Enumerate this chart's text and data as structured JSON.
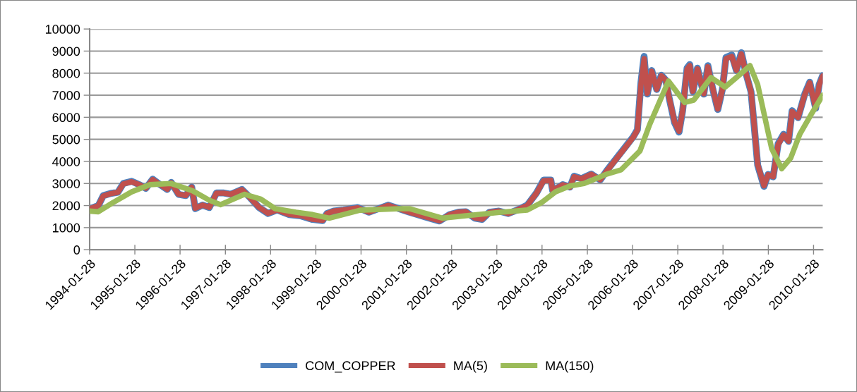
{
  "chart_data": {
    "type": "line",
    "ylim": [
      0,
      10000
    ],
    "yticks": [
      0,
      1000,
      2000,
      3000,
      4000,
      5000,
      6000,
      7000,
      8000,
      9000,
      10000
    ],
    "xlim": [
      "1994-01-28",
      "2010-04-12"
    ],
    "xticks": [
      "1994-01-28",
      "1995-01-28",
      "1996-01-28",
      "1997-01-28",
      "1998-01-28",
      "1999-01-28",
      "2000-01-28",
      "2001-01-28",
      "2002-01-28",
      "2003-01-28",
      "2004-01-28",
      "2005-01-28",
      "2006-01-28",
      "2007-01-28",
      "2008-01-28",
      "2009-01-28",
      "2010-01-28"
    ],
    "grid": "y",
    "legend": "bottom",
    "marker": "none",
    "line_style": "solid",
    "series": [
      {
        "name": "COM_COPPER",
        "color": "#4f81bd",
        "x": [
          "1994-01-28",
          "1994-04-08",
          "1994-05-18",
          "1994-07-16",
          "1994-09-13",
          "1994-10-27",
          "1995-01-02",
          "1995-03-04",
          "1995-04-27",
          "1995-06-21",
          "1995-08-19",
          "1995-10-16",
          "1995-11-18",
          "1996-01-15",
          "1996-03-14",
          "1996-05-01",
          "1996-05-30",
          "1996-07-27",
          "1996-09-20",
          "1996-11-17",
          "1997-01-15",
          "1997-03-11",
          "1997-06-10",
          "1997-08-08",
          "1997-10-27",
          "1998-01-08",
          "1998-03-21",
          "1998-06-28",
          "1998-10-01",
          "1999-01-02",
          "1999-03-24",
          "1999-04-28",
          "1999-06-22",
          "1999-09-09",
          "2000-01-02",
          "2000-04-01",
          "2000-09-02",
          "2000-11-01",
          "2001-02-21",
          "2001-07-02",
          "2001-10-23",
          "2002-01-12",
          "2002-03-25",
          "2002-05-23",
          "2002-08-04",
          "2002-10-01",
          "2002-11-29",
          "2003-02-14",
          "2003-05-01",
          "2003-07-13",
          "2003-10-01",
          "2003-12-13",
          "2004-02-10",
          "2004-04-08",
          "2004-04-23",
          "2004-07-13",
          "2004-09-10",
          "2004-10-13",
          "2004-12-10",
          "2005-02-28",
          "2005-05-12",
          "2005-07-06",
          "2005-09-21",
          "2005-12-06",
          "2006-02-03",
          "2006-03-08",
          "2006-04-06",
          "2006-05-01",
          "2006-05-27",
          "2006-07-02",
          "2006-08-11",
          "2006-09-17",
          "2006-10-23",
          "2006-11-21",
          "2007-01-02",
          "2007-02-07",
          "2007-03-08",
          "2007-04-13",
          "2007-05-05",
          "2007-05-30",
          "2007-07-06",
          "2007-08-26",
          "2007-09-28",
          "2007-11-07",
          "2007-12-17",
          "2008-01-23",
          "2008-02-21",
          "2008-04-08",
          "2008-05-15",
          "2008-06-24",
          "2008-08-04",
          "2008-09-10",
          "2008-10-05",
          "2008-11-03",
          "2008-12-24",
          "2009-01-26",
          "2009-03-08",
          "2009-04-17",
          "2009-05-31",
          "2009-07-10",
          "2009-08-08",
          "2009-09-25",
          "2009-11-18",
          "2009-12-28",
          "2010-02-14",
          "2010-03-14",
          "2010-04-12"
        ],
        "values": [
          1850,
          2000,
          2450,
          2550,
          2600,
          3000,
          3100,
          2950,
          2780,
          3200,
          2950,
          2730,
          3050,
          2510,
          2450,
          2840,
          1860,
          2020,
          1910,
          2570,
          2570,
          2510,
          2730,
          2400,
          1910,
          1640,
          1800,
          1590,
          1530,
          1370,
          1320,
          1640,
          1750,
          1800,
          1910,
          1700,
          2020,
          1910,
          1700,
          1480,
          1300,
          1590,
          1700,
          1720,
          1430,
          1370,
          1700,
          1750,
          1640,
          1800,
          2020,
          2560,
          3160,
          3160,
          2670,
          2950,
          2840,
          3330,
          3220,
          3430,
          3160,
          3600,
          4150,
          4690,
          5120,
          5440,
          7590,
          8760,
          7050,
          8120,
          7260,
          7910,
          7690,
          6830,
          5760,
          5330,
          6300,
          8230,
          8390,
          7160,
          8230,
          7050,
          8340,
          7260,
          6350,
          7260,
          8710,
          8820,
          8120,
          8930,
          7910,
          7160,
          5660,
          3830,
          2870,
          3410,
          3300,
          4800,
          5230,
          4910,
          6300,
          5980,
          7050,
          7590,
          6410,
          7480,
          7900
        ]
      },
      {
        "name": "MA(5)",
        "color": "#c0504d",
        "x": [
          "1994-01-28",
          "1994-04-08",
          "1994-05-18",
          "1994-07-16",
          "1994-09-13",
          "1994-10-27",
          "1995-01-02",
          "1995-03-04",
          "1995-04-27",
          "1995-06-21",
          "1995-08-19",
          "1995-10-16",
          "1995-11-18",
          "1996-01-15",
          "1996-03-14",
          "1996-05-01",
          "1996-05-30",
          "1996-07-27",
          "1996-09-20",
          "1996-11-17",
          "1997-01-15",
          "1997-03-11",
          "1997-06-10",
          "1997-08-08",
          "1997-10-27",
          "1998-01-08",
          "1998-03-21",
          "1998-06-28",
          "1998-10-01",
          "1999-01-02",
          "1999-03-24",
          "1999-04-28",
          "1999-06-22",
          "1999-09-09",
          "2000-01-02",
          "2000-04-01",
          "2000-09-02",
          "2000-11-01",
          "2001-02-21",
          "2001-07-02",
          "2001-10-23",
          "2002-01-12",
          "2002-03-25",
          "2002-05-23",
          "2002-08-04",
          "2002-10-01",
          "2002-11-29",
          "2003-02-14",
          "2003-05-01",
          "2003-07-13",
          "2003-10-01",
          "2003-12-13",
          "2004-02-10",
          "2004-04-08",
          "2004-04-23",
          "2004-07-13",
          "2004-09-10",
          "2004-10-13",
          "2004-12-10",
          "2005-02-28",
          "2005-05-12",
          "2005-07-06",
          "2005-09-21",
          "2005-12-06",
          "2006-02-03",
          "2006-03-08",
          "2006-04-06",
          "2006-05-01",
          "2006-05-27",
          "2006-07-02",
          "2006-08-11",
          "2006-09-17",
          "2006-10-23",
          "2006-11-21",
          "2007-01-02",
          "2007-02-07",
          "2007-03-08",
          "2007-04-13",
          "2007-05-05",
          "2007-05-30",
          "2007-07-06",
          "2007-08-26",
          "2007-09-28",
          "2007-11-07",
          "2007-12-17",
          "2008-01-23",
          "2008-02-21",
          "2008-04-08",
          "2008-05-15",
          "2008-06-24",
          "2008-08-04",
          "2008-09-10",
          "2008-10-05",
          "2008-11-03",
          "2008-12-24",
          "2009-01-26",
          "2009-03-08",
          "2009-04-17",
          "2009-05-31",
          "2009-07-10",
          "2009-08-08",
          "2009-09-25",
          "2009-11-18",
          "2009-12-28",
          "2010-02-14",
          "2010-03-14",
          "2010-04-12"
        ],
        "values": [
          1850,
          2000,
          2430,
          2540,
          2600,
          2980,
          3080,
          2950,
          2790,
          3180,
          2950,
          2740,
          3030,
          2520,
          2460,
          2830,
          1880,
          2020,
          1920,
          2560,
          2560,
          2510,
          2720,
          2400,
          1920,
          1650,
          1800,
          1600,
          1540,
          1380,
          1330,
          1630,
          1750,
          1800,
          1900,
          1700,
          2010,
          1900,
          1700,
          1490,
          1310,
          1590,
          1700,
          1720,
          1440,
          1380,
          1690,
          1750,
          1640,
          1800,
          2010,
          2550,
          3130,
          3140,
          2690,
          2940,
          2840,
          3310,
          3210,
          3420,
          3170,
          3580,
          4130,
          4670,
          5100,
          5420,
          7500,
          8650,
          7080,
          8080,
          7270,
          7880,
          7680,
          6850,
          5790,
          5370,
          6280,
          8180,
          8340,
          7180,
          8190,
          7070,
          8290,
          7280,
          6380,
          7250,
          8660,
          8760,
          8130,
          8870,
          7920,
          7180,
          5700,
          3860,
          2900,
          3400,
          3310,
          4760,
          5200,
          4920,
          6260,
          5990,
          7020,
          7560,
          6430,
          7450,
          7870
        ]
      },
      {
        "name": "MA(150)",
        "color": "#9bbb59",
        "x": [
          "1994-01-28",
          "1994-04-08",
          "1994-08-03",
          "1995-01-02",
          "1995-05-30",
          "1995-11-18",
          "1996-05-08",
          "1996-09-20",
          "1996-12-20",
          "1997-07-02",
          "1997-11-10",
          "1998-03-06",
          "1998-08-21",
          "1999-01-02",
          "1999-05-19",
          "2000-01-20",
          "2000-12-10",
          "2001-02-21",
          "2001-11-14",
          "2002-05-23",
          "2003-03-04",
          "2003-10-01",
          "2004-01-23",
          "2004-05-15",
          "2004-09-10",
          "2005-01-02",
          "2005-07-06",
          "2005-10-27",
          "2006-03-29",
          "2006-06-14",
          "2006-11-14",
          "2007-03-25",
          "2007-06-06",
          "2007-10-23",
          "2008-02-14",
          "2008-05-15",
          "2008-09-02",
          "2008-11-03",
          "2009-02-24",
          "2009-05-16",
          "2009-07-27",
          "2009-10-09",
          "2010-01-15",
          "2010-04-12"
        ],
        "values": [
          1750,
          1720,
          2130,
          2620,
          2950,
          3000,
          2670,
          2240,
          2040,
          2510,
          2290,
          1860,
          1700,
          1590,
          1430,
          1790,
          1860,
          1860,
          1430,
          1540,
          1700,
          1800,
          2130,
          2620,
          2890,
          3000,
          3430,
          3620,
          4480,
          5660,
          7640,
          6670,
          6780,
          7800,
          7370,
          7800,
          8340,
          7480,
          4580,
          3670,
          4150,
          5230,
          6190,
          7000
        ]
      }
    ]
  }
}
